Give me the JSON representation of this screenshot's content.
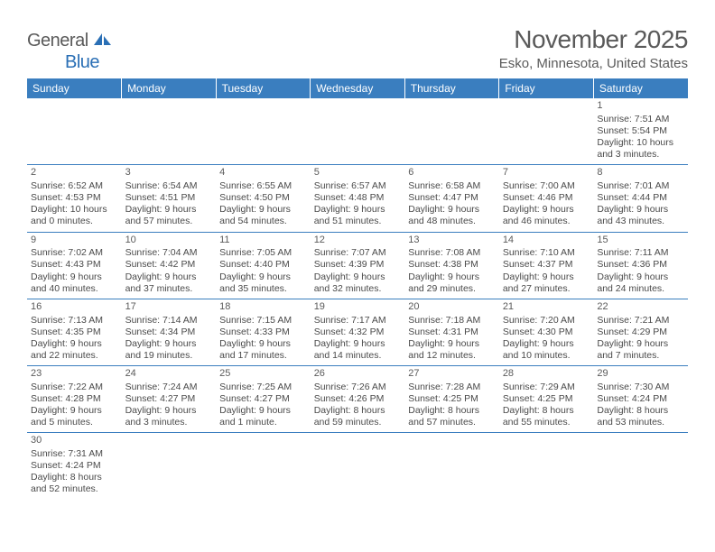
{
  "logo": {
    "text_general": "General",
    "text_blue": "Blue"
  },
  "title": "November 2025",
  "location": "Esko, Minnesota, United States",
  "colors": {
    "header_bg": "#3a7ebf",
    "header_text": "#ffffff",
    "border": "#3a7ebf",
    "body_text": "#4a4a4a",
    "title_text": "#5a5a5a",
    "logo_general": "#5a5a5a",
    "logo_blue": "#2a6fb5"
  },
  "day_headers": [
    "Sunday",
    "Monday",
    "Tuesday",
    "Wednesday",
    "Thursday",
    "Friday",
    "Saturday"
  ],
  "weeks": [
    [
      null,
      null,
      null,
      null,
      null,
      null,
      {
        "n": "1",
        "sunrise": "Sunrise: 7:51 AM",
        "sunset": "Sunset: 5:54 PM",
        "daylight1": "Daylight: 10 hours",
        "daylight2": "and 3 minutes."
      }
    ],
    [
      {
        "n": "2",
        "sunrise": "Sunrise: 6:52 AM",
        "sunset": "Sunset: 4:53 PM",
        "daylight1": "Daylight: 10 hours",
        "daylight2": "and 0 minutes."
      },
      {
        "n": "3",
        "sunrise": "Sunrise: 6:54 AM",
        "sunset": "Sunset: 4:51 PM",
        "daylight1": "Daylight: 9 hours",
        "daylight2": "and 57 minutes."
      },
      {
        "n": "4",
        "sunrise": "Sunrise: 6:55 AM",
        "sunset": "Sunset: 4:50 PM",
        "daylight1": "Daylight: 9 hours",
        "daylight2": "and 54 minutes."
      },
      {
        "n": "5",
        "sunrise": "Sunrise: 6:57 AM",
        "sunset": "Sunset: 4:48 PM",
        "daylight1": "Daylight: 9 hours",
        "daylight2": "and 51 minutes."
      },
      {
        "n": "6",
        "sunrise": "Sunrise: 6:58 AM",
        "sunset": "Sunset: 4:47 PM",
        "daylight1": "Daylight: 9 hours",
        "daylight2": "and 48 minutes."
      },
      {
        "n": "7",
        "sunrise": "Sunrise: 7:00 AM",
        "sunset": "Sunset: 4:46 PM",
        "daylight1": "Daylight: 9 hours",
        "daylight2": "and 46 minutes."
      },
      {
        "n": "8",
        "sunrise": "Sunrise: 7:01 AM",
        "sunset": "Sunset: 4:44 PM",
        "daylight1": "Daylight: 9 hours",
        "daylight2": "and 43 minutes."
      }
    ],
    [
      {
        "n": "9",
        "sunrise": "Sunrise: 7:02 AM",
        "sunset": "Sunset: 4:43 PM",
        "daylight1": "Daylight: 9 hours",
        "daylight2": "and 40 minutes."
      },
      {
        "n": "10",
        "sunrise": "Sunrise: 7:04 AM",
        "sunset": "Sunset: 4:42 PM",
        "daylight1": "Daylight: 9 hours",
        "daylight2": "and 37 minutes."
      },
      {
        "n": "11",
        "sunrise": "Sunrise: 7:05 AM",
        "sunset": "Sunset: 4:40 PM",
        "daylight1": "Daylight: 9 hours",
        "daylight2": "and 35 minutes."
      },
      {
        "n": "12",
        "sunrise": "Sunrise: 7:07 AM",
        "sunset": "Sunset: 4:39 PM",
        "daylight1": "Daylight: 9 hours",
        "daylight2": "and 32 minutes."
      },
      {
        "n": "13",
        "sunrise": "Sunrise: 7:08 AM",
        "sunset": "Sunset: 4:38 PM",
        "daylight1": "Daylight: 9 hours",
        "daylight2": "and 29 minutes."
      },
      {
        "n": "14",
        "sunrise": "Sunrise: 7:10 AM",
        "sunset": "Sunset: 4:37 PM",
        "daylight1": "Daylight: 9 hours",
        "daylight2": "and 27 minutes."
      },
      {
        "n": "15",
        "sunrise": "Sunrise: 7:11 AM",
        "sunset": "Sunset: 4:36 PM",
        "daylight1": "Daylight: 9 hours",
        "daylight2": "and 24 minutes."
      }
    ],
    [
      {
        "n": "16",
        "sunrise": "Sunrise: 7:13 AM",
        "sunset": "Sunset: 4:35 PM",
        "daylight1": "Daylight: 9 hours",
        "daylight2": "and 22 minutes."
      },
      {
        "n": "17",
        "sunrise": "Sunrise: 7:14 AM",
        "sunset": "Sunset: 4:34 PM",
        "daylight1": "Daylight: 9 hours",
        "daylight2": "and 19 minutes."
      },
      {
        "n": "18",
        "sunrise": "Sunrise: 7:15 AM",
        "sunset": "Sunset: 4:33 PM",
        "daylight1": "Daylight: 9 hours",
        "daylight2": "and 17 minutes."
      },
      {
        "n": "19",
        "sunrise": "Sunrise: 7:17 AM",
        "sunset": "Sunset: 4:32 PM",
        "daylight1": "Daylight: 9 hours",
        "daylight2": "and 14 minutes."
      },
      {
        "n": "20",
        "sunrise": "Sunrise: 7:18 AM",
        "sunset": "Sunset: 4:31 PM",
        "daylight1": "Daylight: 9 hours",
        "daylight2": "and 12 minutes."
      },
      {
        "n": "21",
        "sunrise": "Sunrise: 7:20 AM",
        "sunset": "Sunset: 4:30 PM",
        "daylight1": "Daylight: 9 hours",
        "daylight2": "and 10 minutes."
      },
      {
        "n": "22",
        "sunrise": "Sunrise: 7:21 AM",
        "sunset": "Sunset: 4:29 PM",
        "daylight1": "Daylight: 9 hours",
        "daylight2": "and 7 minutes."
      }
    ],
    [
      {
        "n": "23",
        "sunrise": "Sunrise: 7:22 AM",
        "sunset": "Sunset: 4:28 PM",
        "daylight1": "Daylight: 9 hours",
        "daylight2": "and 5 minutes."
      },
      {
        "n": "24",
        "sunrise": "Sunrise: 7:24 AM",
        "sunset": "Sunset: 4:27 PM",
        "daylight1": "Daylight: 9 hours",
        "daylight2": "and 3 minutes."
      },
      {
        "n": "25",
        "sunrise": "Sunrise: 7:25 AM",
        "sunset": "Sunset: 4:27 PM",
        "daylight1": "Daylight: 9 hours",
        "daylight2": "and 1 minute."
      },
      {
        "n": "26",
        "sunrise": "Sunrise: 7:26 AM",
        "sunset": "Sunset: 4:26 PM",
        "daylight1": "Daylight: 8 hours",
        "daylight2": "and 59 minutes."
      },
      {
        "n": "27",
        "sunrise": "Sunrise: 7:28 AM",
        "sunset": "Sunset: 4:25 PM",
        "daylight1": "Daylight: 8 hours",
        "daylight2": "and 57 minutes."
      },
      {
        "n": "28",
        "sunrise": "Sunrise: 7:29 AM",
        "sunset": "Sunset: 4:25 PM",
        "daylight1": "Daylight: 8 hours",
        "daylight2": "and 55 minutes."
      },
      {
        "n": "29",
        "sunrise": "Sunrise: 7:30 AM",
        "sunset": "Sunset: 4:24 PM",
        "daylight1": "Daylight: 8 hours",
        "daylight2": "and 53 minutes."
      }
    ],
    [
      {
        "n": "30",
        "sunrise": "Sunrise: 7:31 AM",
        "sunset": "Sunset: 4:24 PM",
        "daylight1": "Daylight: 8 hours",
        "daylight2": "and 52 minutes."
      },
      null,
      null,
      null,
      null,
      null,
      null
    ]
  ]
}
